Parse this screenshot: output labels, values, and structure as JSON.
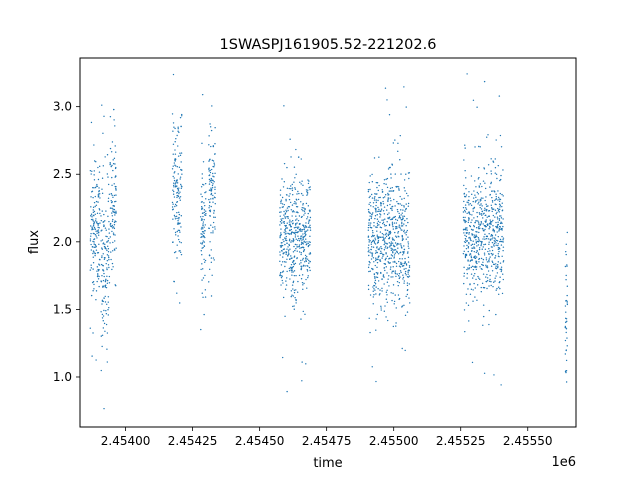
{
  "chart_data": {
    "type": "scatter",
    "title": "1SWASPJ161905.52-221202.6",
    "xlabel": "time",
    "ylabel": "flux",
    "x_offset_label": "1e6",
    "xlim": [
      2.45383,
      2.45568
    ],
    "ylim": [
      0.63,
      3.36
    ],
    "x_ticks": [
      2.454,
      2.45425,
      2.4545,
      2.45475,
      2.455,
      2.45525,
      2.4555
    ],
    "x_tick_labels": [
      "2.45400",
      "2.45425",
      "2.45450",
      "2.45475",
      "2.45500",
      "2.45525",
      "2.45550"
    ],
    "y_ticks": [
      1.0,
      1.5,
      2.0,
      2.5,
      3.0
    ],
    "y_tick_labels": [
      "1.0",
      "1.5",
      "2.0",
      "2.5",
      "3.0"
    ],
    "grid": false,
    "marker_color": "#1f77b4",
    "seasons": [
      {
        "x_range": [
          2.453868,
          2.453905
        ],
        "center_flux": 2.1,
        "spread": 0.25
      },
      {
        "x_range": [
          2.453908,
          2.45394
        ],
        "center_flux": 1.85,
        "spread": 0.32
      },
      {
        "x_range": [
          2.453942,
          2.453965
        ],
        "center_flux": 2.3,
        "spread": 0.25
      },
      {
        "x_range": [
          2.454175,
          2.45421
        ],
        "center_flux": 2.35,
        "spread": 0.3
      },
      {
        "x_range": [
          2.45428,
          2.4543
        ],
        "center_flux": 2.05,
        "spread": 0.25
      },
      {
        "x_range": [
          2.45431,
          2.454335
        ],
        "center_flux": 2.35,
        "spread": 0.25
      },
      {
        "x_range": [
          2.454575,
          2.45469
        ],
        "center_flux": 2.05,
        "spread": 0.23
      },
      {
        "x_range": [
          2.454905,
          2.45506
        ],
        "center_flux": 2.0,
        "spread": 0.26
      },
      {
        "x_range": [
          2.45526,
          2.45541
        ],
        "center_flux": 2.05,
        "spread": 0.24
      },
      {
        "x_range": [
          2.45564,
          2.455648
        ],
        "center_flux": 1.4,
        "spread": 0.3
      }
    ]
  }
}
